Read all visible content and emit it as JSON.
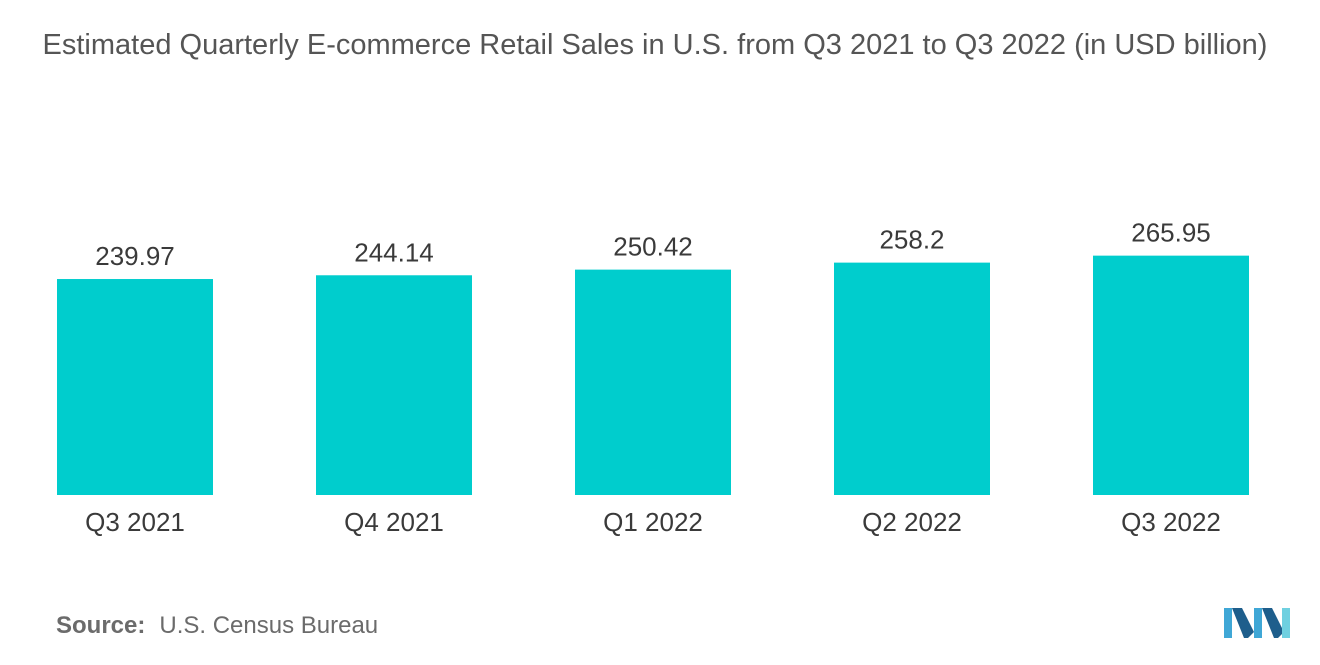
{
  "chart_data": {
    "type": "bar",
    "title": "Estimated Quarterly E-commerce Retail Sales in U.S. from Q3 2021 to Q3 2022 (in USD billion)",
    "categories": [
      "Q3 2021",
      "Q4 2021",
      "Q1 2022",
      "Q2 2022",
      "Q3 2022"
    ],
    "values": [
      239.97,
      244.14,
      250.42,
      258.2,
      265.95
    ],
    "value_labels": [
      "239.97",
      "244.14",
      "250.42",
      "258.2",
      "265.95"
    ],
    "xlabel": "",
    "ylabel": "",
    "ylim": [
      0,
      290
    ],
    "grid": false,
    "y_axis_visible": false,
    "bar_color": "#00CDCD"
  },
  "source": {
    "label": "Source:",
    "text": "U.S. Census Bureau"
  },
  "logo": {
    "icon": "mordor-intelligence-logo-icon",
    "colors": [
      "#3FA7D6",
      "#1E5E8C",
      "#6FD0E0"
    ]
  }
}
